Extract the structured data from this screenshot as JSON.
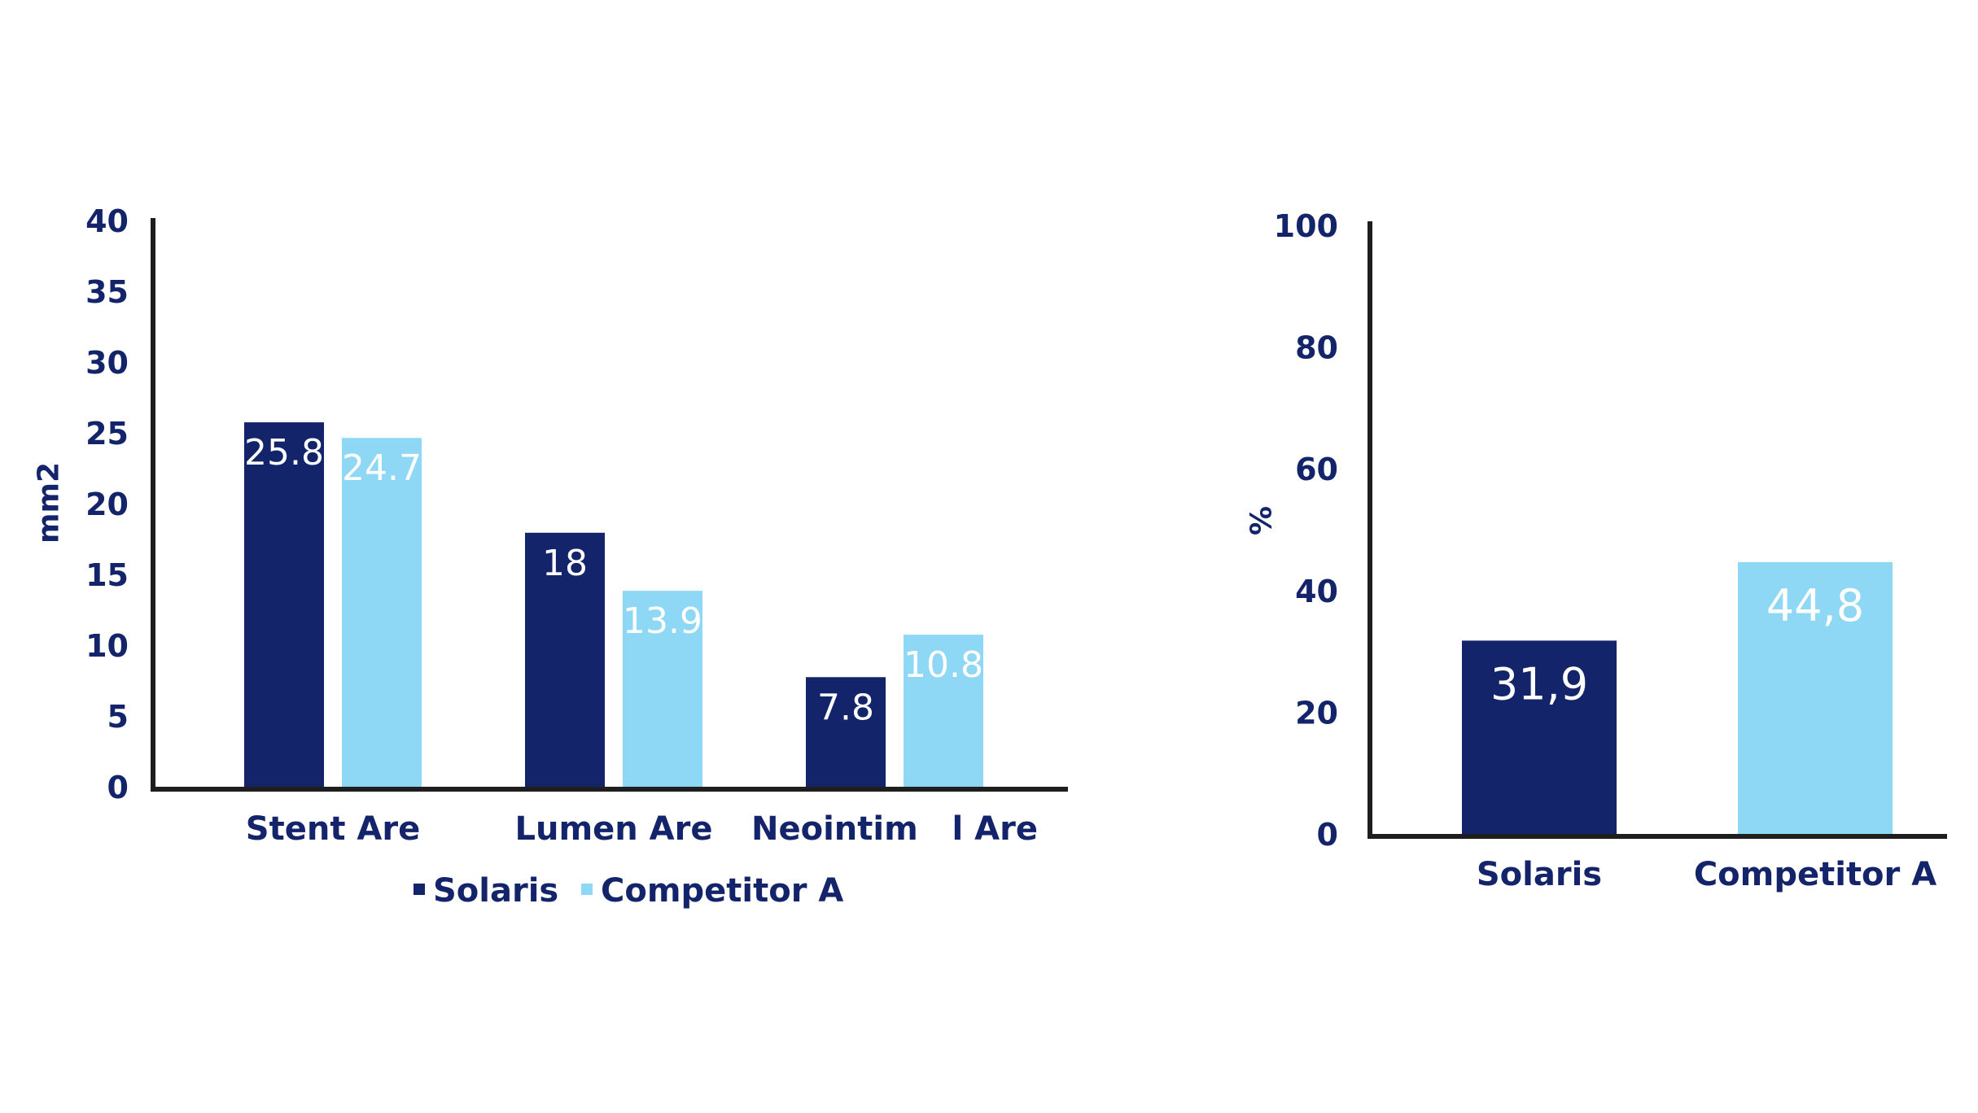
{
  "colors": {
    "solaris": "#14246b",
    "competitor": "#8fd8f5",
    "axis": "#1e1e1e",
    "text": "#14246b",
    "bar_label": "#ffffff"
  },
  "chart_data": [
    {
      "type": "bar",
      "title": "",
      "xlabel": "",
      "ylabel": "mm2",
      "ylim": [
        0,
        40
      ],
      "yticks": [
        "0",
        "5",
        "10",
        "15",
        "20",
        "25",
        "30",
        "35",
        "40"
      ],
      "categories": [
        "Stent Are",
        "Lumen Are",
        "Neointim   l Are"
      ],
      "series": [
        {
          "name": "Solaris",
          "values": [
            25.8,
            18,
            7.8
          ],
          "labels": [
            "25.8",
            "18",
            "7.8"
          ]
        },
        {
          "name": "Competitor A",
          "values": [
            24.7,
            13.9,
            10.8
          ],
          "labels": [
            "24.7",
            "13.9",
            "10.8"
          ]
        }
      ],
      "legend": "bottom",
      "grid": false
    },
    {
      "type": "bar",
      "title": "",
      "xlabel": "",
      "ylabel": "%",
      "ylim": [
        0,
        100
      ],
      "yticks": [
        "0",
        "20",
        "40",
        "60",
        "80",
        "100"
      ],
      "categories": [
        "Solaris",
        "Competitor A"
      ],
      "values": [
        31.9,
        44.8
      ],
      "labels": [
        "31,9",
        "44,8"
      ],
      "legend": "none",
      "grid": false
    }
  ]
}
